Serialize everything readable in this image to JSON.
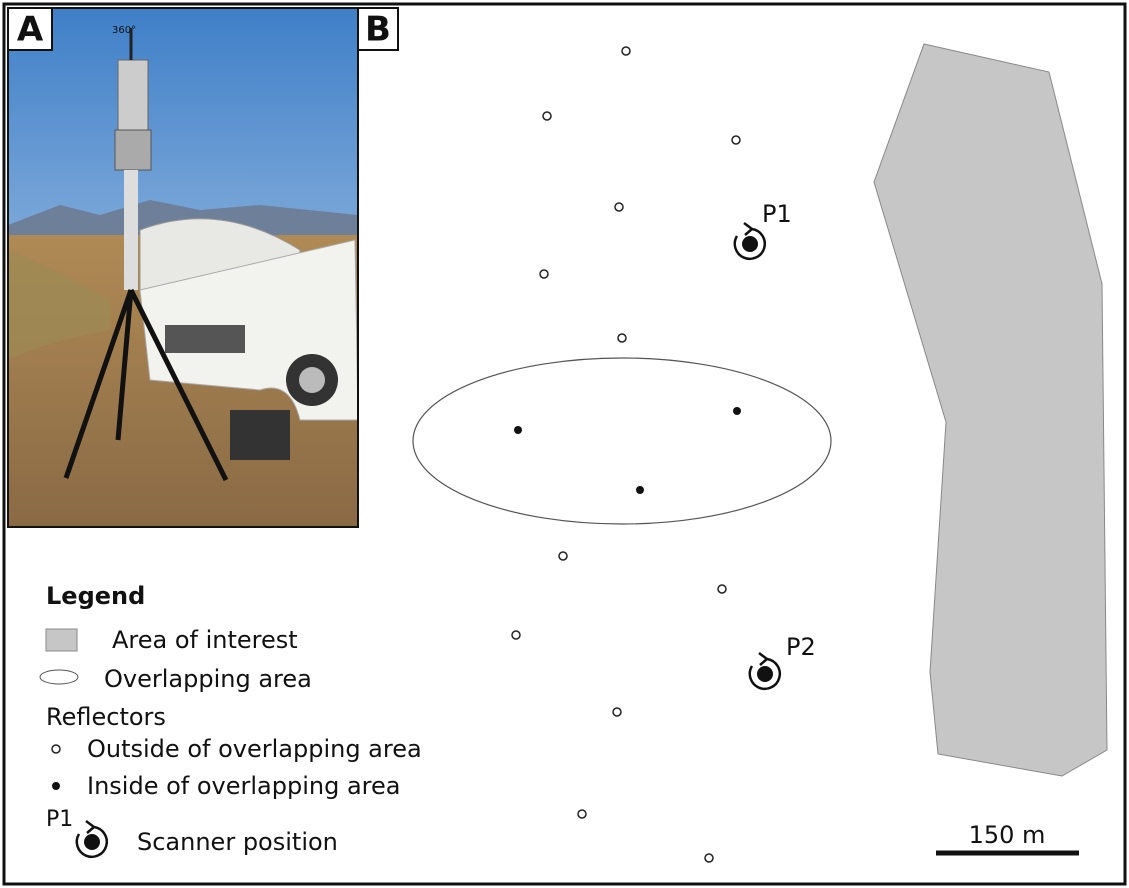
{
  "panels": {
    "a": {
      "label": "A",
      "annotation": "360°"
    },
    "b": {
      "label": "B"
    }
  },
  "scanners": [
    {
      "label": "P1"
    },
    {
      "label": "P2"
    }
  ],
  "legend": {
    "title": "Legend",
    "area_of_interest": "Area of interest",
    "overlapping_area": "Overlapping area",
    "reflectors_heading": "Reflectors",
    "outside": "Outside of overlapping area",
    "inside": "Inside of overlapping area",
    "scanner_symbol_label": "P1",
    "scanner_position": "Scanner position"
  },
  "scale_bar": {
    "label": "150 m"
  }
}
